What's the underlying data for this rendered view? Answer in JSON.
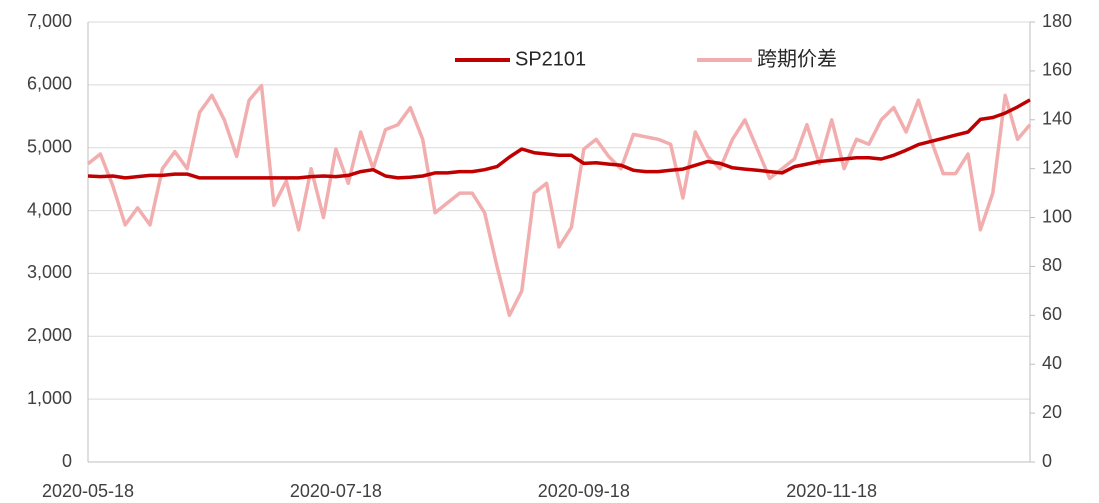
{
  "chart_data": {
    "type": "line",
    "categories": [
      "2020-05-18",
      null,
      null,
      null,
      null,
      null,
      null,
      null,
      null,
      null,
      null,
      null,
      null,
      null,
      null,
      null,
      null,
      null,
      null,
      null,
      "2020-07-18",
      null,
      null,
      null,
      null,
      null,
      null,
      null,
      null,
      null,
      null,
      null,
      null,
      null,
      null,
      null,
      null,
      null,
      null,
      null,
      "2020-09-18",
      null,
      null,
      null,
      null,
      null,
      null,
      null,
      null,
      null,
      null,
      null,
      null,
      null,
      null,
      null,
      null,
      null,
      null,
      null,
      "2020-11-18",
      null,
      null,
      null,
      null,
      null,
      null,
      null,
      null,
      null,
      null,
      null,
      null,
      null,
      null,
      null,
      null
    ],
    "series": [
      {
        "name": "SP2101",
        "color": "#c00000",
        "axis": "y",
        "values": [
          4550,
          4540,
          4550,
          4520,
          4540,
          4560,
          4560,
          4580,
          4580,
          4520,
          4520,
          4520,
          4520,
          4520,
          4520,
          4520,
          4520,
          4520,
          4540,
          4550,
          4540,
          4560,
          4620,
          4650,
          4550,
          4520,
          4530,
          4550,
          4600,
          4600,
          4620,
          4620,
          4650,
          4700,
          4850,
          4980,
          4920,
          4900,
          4880,
          4880,
          4750,
          4760,
          4740,
          4720,
          4640,
          4620,
          4620,
          4640,
          4660,
          4720,
          4780,
          4750,
          4680,
          4660,
          4640,
          4620,
          4600,
          4700,
          4740,
          4780,
          4800,
          4820,
          4840,
          4840,
          4820,
          4880,
          4960,
          5050,
          5100,
          5150,
          5200,
          5250,
          5450,
          5480,
          5550,
          5650,
          5760
        ]
      },
      {
        "name": "跨期价差",
        "color": "#f2aeae",
        "axis": "y2",
        "values": [
          122,
          126,
          113,
          97,
          104,
          97,
          120,
          127,
          120,
          143,
          150,
          140,
          125,
          148,
          154,
          105,
          115,
          95,
          120,
          100,
          128,
          114,
          135,
          120,
          136,
          138,
          145,
          132,
          102,
          106,
          110,
          110,
          102,
          80,
          60,
          70,
          110,
          114,
          88,
          96,
          128,
          132,
          125,
          120,
          134,
          133,
          132,
          130,
          108,
          135,
          125,
          120,
          132,
          140,
          128,
          116,
          120,
          124,
          138,
          122,
          140,
          120,
          132,
          130,
          140,
          145,
          135,
          148,
          132,
          118,
          118,
          126,
          95,
          110,
          150,
          132,
          138
        ]
      }
    ],
    "ylim": [
      0,
      7000
    ],
    "yticks": [
      0,
      {
        "value": 1000,
        "label": "1,000"
      },
      {
        "value": 2000,
        "label": "2,000"
      },
      {
        "value": 3000,
        "label": "3,000"
      },
      {
        "value": 4000,
        "label": "4,000"
      },
      {
        "value": 5000,
        "label": "5,000"
      },
      {
        "value": 6000,
        "label": "6,000"
      },
      {
        "value": 7000,
        "label": "7,000"
      }
    ],
    "y2lim": [
      0,
      180
    ],
    "y2ticks": [
      0,
      20,
      40,
      60,
      80,
      100,
      120,
      140,
      160,
      180
    ],
    "grid": true
  }
}
